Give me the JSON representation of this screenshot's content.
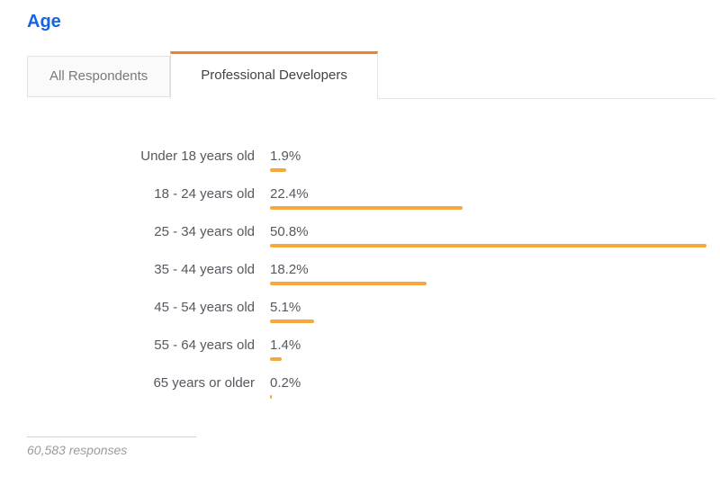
{
  "page": {
    "title": "Age"
  },
  "tabs": [
    {
      "label": "All Respondents",
      "active": false
    },
    {
      "label": "Professional Developers",
      "active": true
    }
  ],
  "chart_data": {
    "type": "bar",
    "orientation": "horizontal",
    "title": "Age",
    "xlabel": "",
    "ylabel": "",
    "grid": false,
    "legend": false,
    "categories": [
      "Under 18 years old",
      "18 - 24 years old",
      "25 - 34 years old",
      "35 - 44 years old",
      "45 - 54 years old",
      "55 - 64 years old",
      "65 years or older"
    ],
    "values": [
      1.9,
      22.4,
      50.8,
      18.2,
      5.1,
      1.4,
      0.2
    ],
    "value_labels": [
      "1.9%",
      "22.4%",
      "50.8%",
      "18.2%",
      "5.1%",
      "1.4%",
      "0.2%"
    ],
    "xmax": 50.8,
    "bar_color": "#f6a83c"
  },
  "footer": {
    "responses": "60,583 responses"
  },
  "colors": {
    "accent_orange": "#f48024",
    "bar_amber": "#f6a83c",
    "title_blue": "#1565e3"
  }
}
